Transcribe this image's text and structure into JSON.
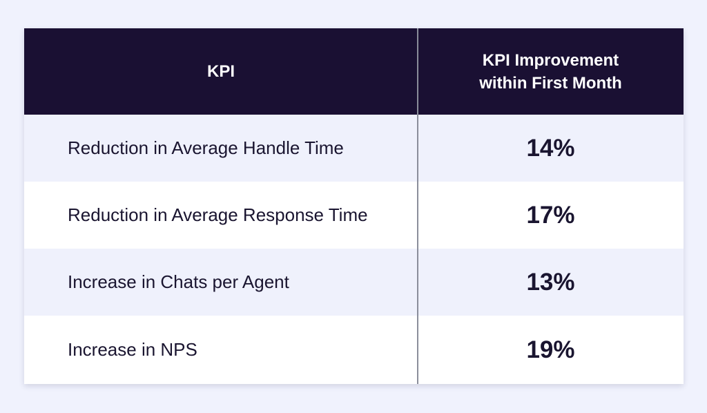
{
  "table": {
    "header": {
      "kpi": "KPI",
      "improvement": "KPI Improvement within First Month"
    },
    "rows": [
      {
        "kpi": "Reduction in Average Handle Time",
        "value": "14%"
      },
      {
        "kpi": "Reduction in Average Response Time",
        "value": "17%"
      },
      {
        "kpi": "Increase in Chats per Agent",
        "value": "13%"
      },
      {
        "kpi": "Increase in NPS",
        "value": "19%"
      }
    ]
  },
  "colors": {
    "page_background": "#f0f2fd",
    "header_background": "#1a1033",
    "header_text": "#ffffff",
    "row_shaded": "#eff1fc",
    "row_plain": "#ffffff",
    "body_text": "#1a1530",
    "divider": "#8a8d9a"
  }
}
